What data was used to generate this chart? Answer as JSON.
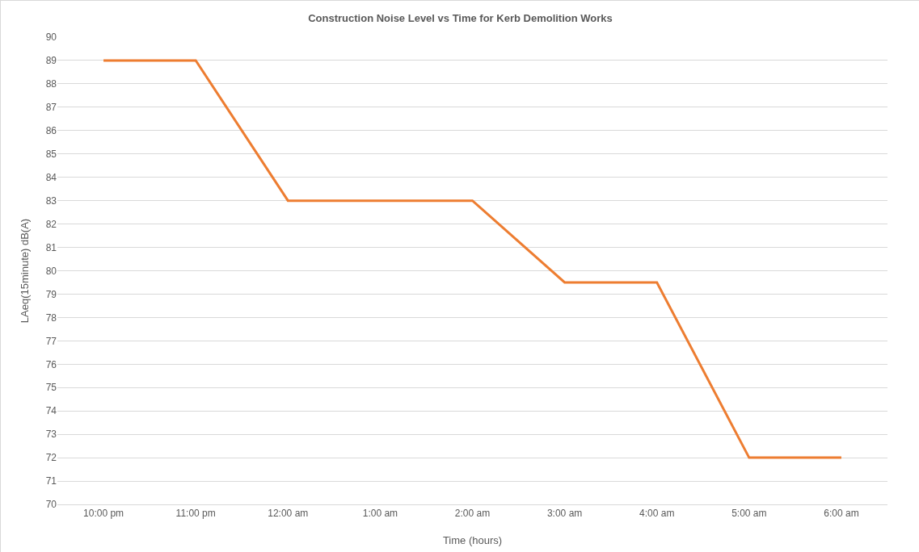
{
  "chart_data": {
    "type": "line",
    "title": "Construction Noise Level vs Time for Kerb Demolition Works",
    "xlabel": "Time (hours)",
    "ylabel": "LAeq(15minute) dB(A)",
    "categories": [
      "10:00 pm",
      "11:00 pm",
      "12:00 am",
      "1:00 am",
      "2:00 am",
      "3:00 am",
      "4:00 am",
      "5:00 am",
      "6:00 am"
    ],
    "series": [
      {
        "color": "#ed7d31",
        "values": [
          89,
          89,
          83,
          83,
          83,
          79.5,
          79.5,
          72,
          72
        ]
      }
    ],
    "ylim": [
      70,
      90
    ],
    "yticks": [
      70,
      71,
      72,
      73,
      74,
      75,
      76,
      77,
      78,
      79,
      80,
      81,
      82,
      83,
      84,
      85,
      86,
      87,
      88,
      89,
      90
    ],
    "grid": "y",
    "marker": "none",
    "line_style": "solid"
  }
}
